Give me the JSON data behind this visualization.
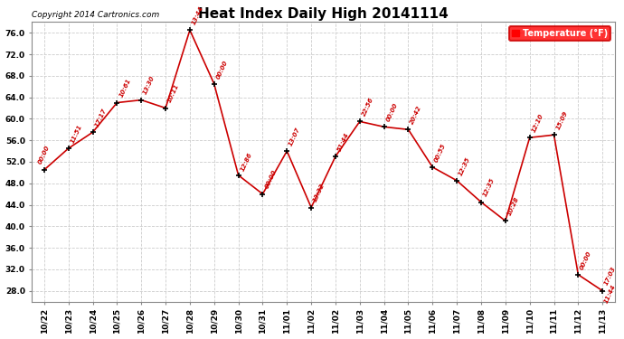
{
  "title": "Heat Index Daily High 20141114",
  "copyright": "Copyright 2014 Cartronics.com",
  "legend_label": "Temperature (°F)",
  "x_labels": [
    "10/22",
    "10/23",
    "10/24",
    "10/25",
    "10/26",
    "10/27",
    "10/28",
    "10/29",
    "10/30",
    "10/31",
    "11/01",
    "11/02",
    "11/02",
    "11/03",
    "11/04",
    "11/05",
    "11/06",
    "11/07",
    "11/08",
    "11/09",
    "11/10",
    "11/11",
    "11/12",
    "11/13"
  ],
  "points": [
    [
      0,
      50.5,
      "00:00"
    ],
    [
      1,
      54.5,
      "11:51"
    ],
    [
      2,
      57.5,
      "17:17"
    ],
    [
      3,
      63.0,
      "10:61"
    ],
    [
      4,
      63.5,
      "13:30"
    ],
    [
      5,
      62.0,
      "10:11"
    ],
    [
      6,
      76.5,
      "13:44"
    ],
    [
      7,
      66.5,
      "00:00"
    ],
    [
      8,
      49.5,
      "12:86"
    ],
    [
      9,
      46.0,
      "00:00"
    ],
    [
      10,
      54.0,
      "13:07"
    ],
    [
      11,
      43.5,
      "13:32"
    ],
    [
      12,
      53.0,
      "51:44"
    ],
    [
      13,
      59.5,
      "22:56"
    ],
    [
      14,
      58.5,
      "00:00"
    ],
    [
      15,
      58.0,
      "20:42"
    ],
    [
      16,
      51.0,
      "00:55"
    ],
    [
      17,
      48.5,
      "12:35"
    ],
    [
      18,
      44.5,
      "12:35"
    ],
    [
      19,
      41.0,
      "10:28"
    ],
    [
      20,
      56.5,
      "12:10"
    ],
    [
      21,
      57.0,
      "15:09"
    ],
    [
      22,
      31.0,
      "00:00"
    ],
    [
      23,
      28.0,
      "17:03"
    ]
  ],
  "last_extra_label": "11:44",
  "yticks": [
    28.0,
    32.0,
    36.0,
    40.0,
    44.0,
    48.0,
    52.0,
    56.0,
    60.0,
    64.0,
    68.0,
    72.0,
    76.0
  ],
  "ymin": 26.0,
  "ymax": 78.0,
  "line_color": "#cc0000",
  "marker_color": "#000000",
  "bg_color": "#ffffff",
  "grid_color": "#cccccc",
  "title_color": "#000000",
  "label_color": "#cc0000",
  "title_fontsize": 11,
  "tick_fontsize": 6.5,
  "label_fontsize": 5.0,
  "copyright_fontsize": 6.5
}
